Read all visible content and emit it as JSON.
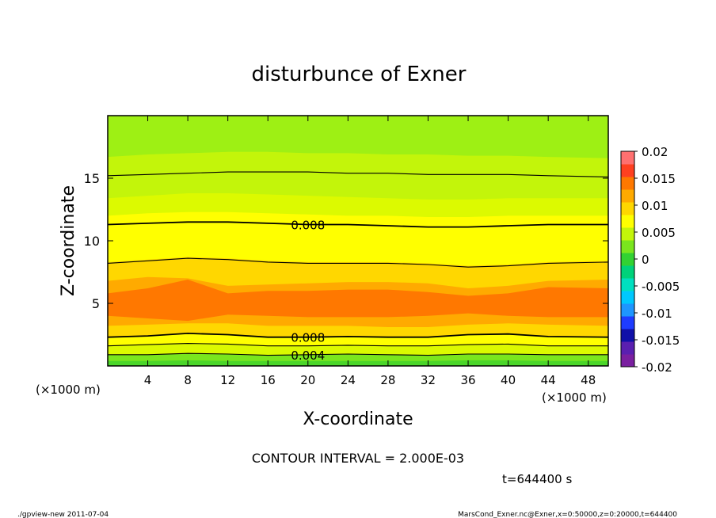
{
  "chart_data": {
    "type": "heatmap",
    "title": "disturbunce of Exner",
    "xlabel": "X-coordinate",
    "ylabel": "Z-coordinate",
    "x_unit": "(×1000 m)",
    "y_unit": "(×1000 m)",
    "xlim": [
      0,
      50
    ],
    "ylim": [
      0,
      20
    ],
    "x_ticks": [
      "4",
      "8",
      "12",
      "16",
      "20",
      "24",
      "28",
      "32",
      "36",
      "40",
      "44",
      "48"
    ],
    "y_ticks": [
      "5",
      "10",
      "15"
    ],
    "grid": false,
    "colorbar": {
      "ticks": [
        "0.02",
        "0.015",
        "0.01",
        "0.005",
        "0",
        "-0.005",
        "-0.01",
        "-0.015",
        "-0.02"
      ],
      "range": [
        -0.02,
        0.02
      ],
      "interval": 0.0025,
      "colors": [
        "#7a1fa0",
        "#5a1fb0",
        "#1010a8",
        "#1e3cff",
        "#1e96ff",
        "#00c8ff",
        "#00e0c0",
        "#00d27a",
        "#32d232",
        "#7ae61e",
        "#c3f50a",
        "#ffff00",
        "#ffd700",
        "#ffaa00",
        "#ff7800",
        "#ff4020",
        "#ff7070"
      ]
    },
    "contour_lines": [
      {
        "label": "0.004",
        "z": [
          0.9,
          0.9,
          1.0,
          0.95,
          0.85,
          0.9,
          0.95,
          0.9,
          0.85,
          0.95,
          0.95,
          0.9,
          0.9
        ]
      },
      {
        "label": "",
        "z": [
          1.6,
          1.7,
          1.8,
          1.75,
          1.6,
          1.6,
          1.65,
          1.6,
          1.6,
          1.7,
          1.75,
          1.6,
          1.6
        ]
      },
      {
        "label": "0.008",
        "z": [
          2.3,
          2.4,
          2.6,
          2.5,
          2.3,
          2.3,
          2.35,
          2.3,
          2.3,
          2.5,
          2.55,
          2.35,
          2.3
        ]
      },
      {
        "label": "",
        "z": [
          8.2,
          8.4,
          8.6,
          8.5,
          8.3,
          8.2,
          8.2,
          8.2,
          8.1,
          7.9,
          8.0,
          8.2,
          8.3
        ]
      },
      {
        "label": "0.008",
        "z": [
          11.3,
          11.4,
          11.5,
          11.5,
          11.4,
          11.3,
          11.3,
          11.2,
          11.1,
          11.1,
          11.2,
          11.3,
          11.3
        ]
      },
      {
        "label": "",
        "z": [
          15.2,
          15.3,
          15.4,
          15.5,
          15.5,
          15.5,
          15.4,
          15.4,
          15.3,
          15.3,
          15.3,
          15.2,
          15.1
        ]
      }
    ],
    "contour_x": [
      0,
      4,
      8,
      12,
      16,
      20,
      24,
      28,
      32,
      36,
      40,
      44,
      50
    ],
    "fill_bands": [
      {
        "color": "#c3f50a",
        "z": [
          16.7,
          16.9,
          17.0,
          17.1,
          17.1,
          17.0,
          17.0,
          16.9,
          16.9,
          16.8,
          16.8,
          16.7,
          16.6
        ]
      },
      {
        "color": "#dcfa00",
        "z": [
          13.4,
          13.6,
          13.8,
          13.8,
          13.7,
          13.6,
          13.5,
          13.4,
          13.3,
          13.3,
          13.4,
          13.4,
          13.4
        ]
      },
      {
        "color": "#ffff00",
        "z": [
          12.0,
          12.2,
          12.3,
          12.3,
          12.2,
          12.1,
          12.0,
          12.0,
          11.9,
          11.9,
          12.0,
          12.0,
          12.0
        ]
      },
      {
        "color": "#ffd700",
        "z": [
          8.3,
          8.5,
          8.7,
          8.6,
          8.4,
          8.3,
          8.3,
          8.3,
          8.2,
          8.0,
          8.1,
          8.3,
          8.4
        ]
      },
      {
        "color": "#ffaa00",
        "z": [
          6.8,
          7.1,
          7.0,
          6.4,
          6.5,
          6.6,
          6.7,
          6.7,
          6.6,
          6.2,
          6.4,
          6.8,
          6.9
        ]
      },
      {
        "color": "#ff7800",
        "z": [
          5.8,
          6.2,
          6.9,
          5.8,
          6.0,
          6.0,
          6.1,
          6.1,
          5.9,
          5.6,
          5.8,
          6.3,
          6.2
        ]
      },
      {
        "color": "#ffaa00",
        "z": [
          4.0,
          3.8,
          3.6,
          4.1,
          4.0,
          3.9,
          3.9,
          3.9,
          4.0,
          4.2,
          4.0,
          3.9,
          3.9
        ]
      },
      {
        "color": "#ffd700",
        "z": [
          3.2,
          3.3,
          3.4,
          3.4,
          3.2,
          3.2,
          3.2,
          3.1,
          3.1,
          3.3,
          3.4,
          3.3,
          3.2
        ]
      },
      {
        "color": "#ffff00",
        "z": [
          2.3,
          2.4,
          2.6,
          2.5,
          2.3,
          2.3,
          2.35,
          2.3,
          2.3,
          2.5,
          2.55,
          2.35,
          2.3
        ]
      },
      {
        "color": "#dcfa00",
        "z": [
          1.6,
          1.7,
          1.8,
          1.75,
          1.6,
          1.6,
          1.65,
          1.6,
          1.6,
          1.7,
          1.75,
          1.6,
          1.6
        ]
      },
      {
        "color": "#7ae61e",
        "z": [
          0.9,
          0.9,
          1.0,
          0.95,
          0.85,
          0.9,
          0.95,
          0.9,
          0.85,
          0.95,
          0.95,
          0.9,
          0.9
        ]
      },
      {
        "color": "#4bd62a",
        "z": [
          0.4,
          0.4,
          0.45,
          0.4,
          0.4,
          0.4,
          0.4,
          0.4,
          0.4,
          0.45,
          0.45,
          0.4,
          0.4
        ]
      }
    ],
    "background_color": "#9ef014",
    "contour_interval_text": "CONTOUR INTERVAL = 2.000E-03",
    "time_text": "t=644400 s"
  },
  "footer": {
    "left": "./gpview-new  2011-07-04",
    "right": "MarsCond_Exner.nc@Exner,x=0:50000,z=0:20000,t=644400"
  }
}
